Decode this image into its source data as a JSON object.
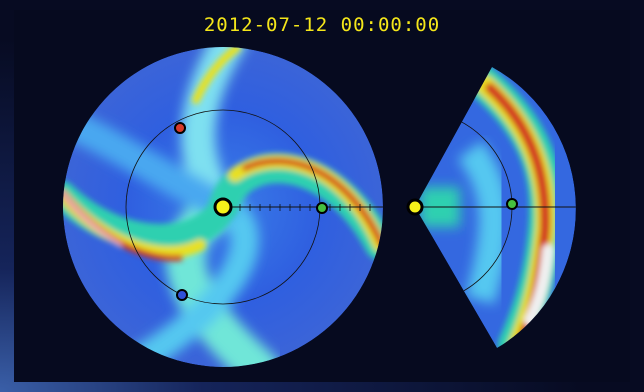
{
  "header": {
    "timestamp": "2012-07-12 00:00:00"
  }
}
